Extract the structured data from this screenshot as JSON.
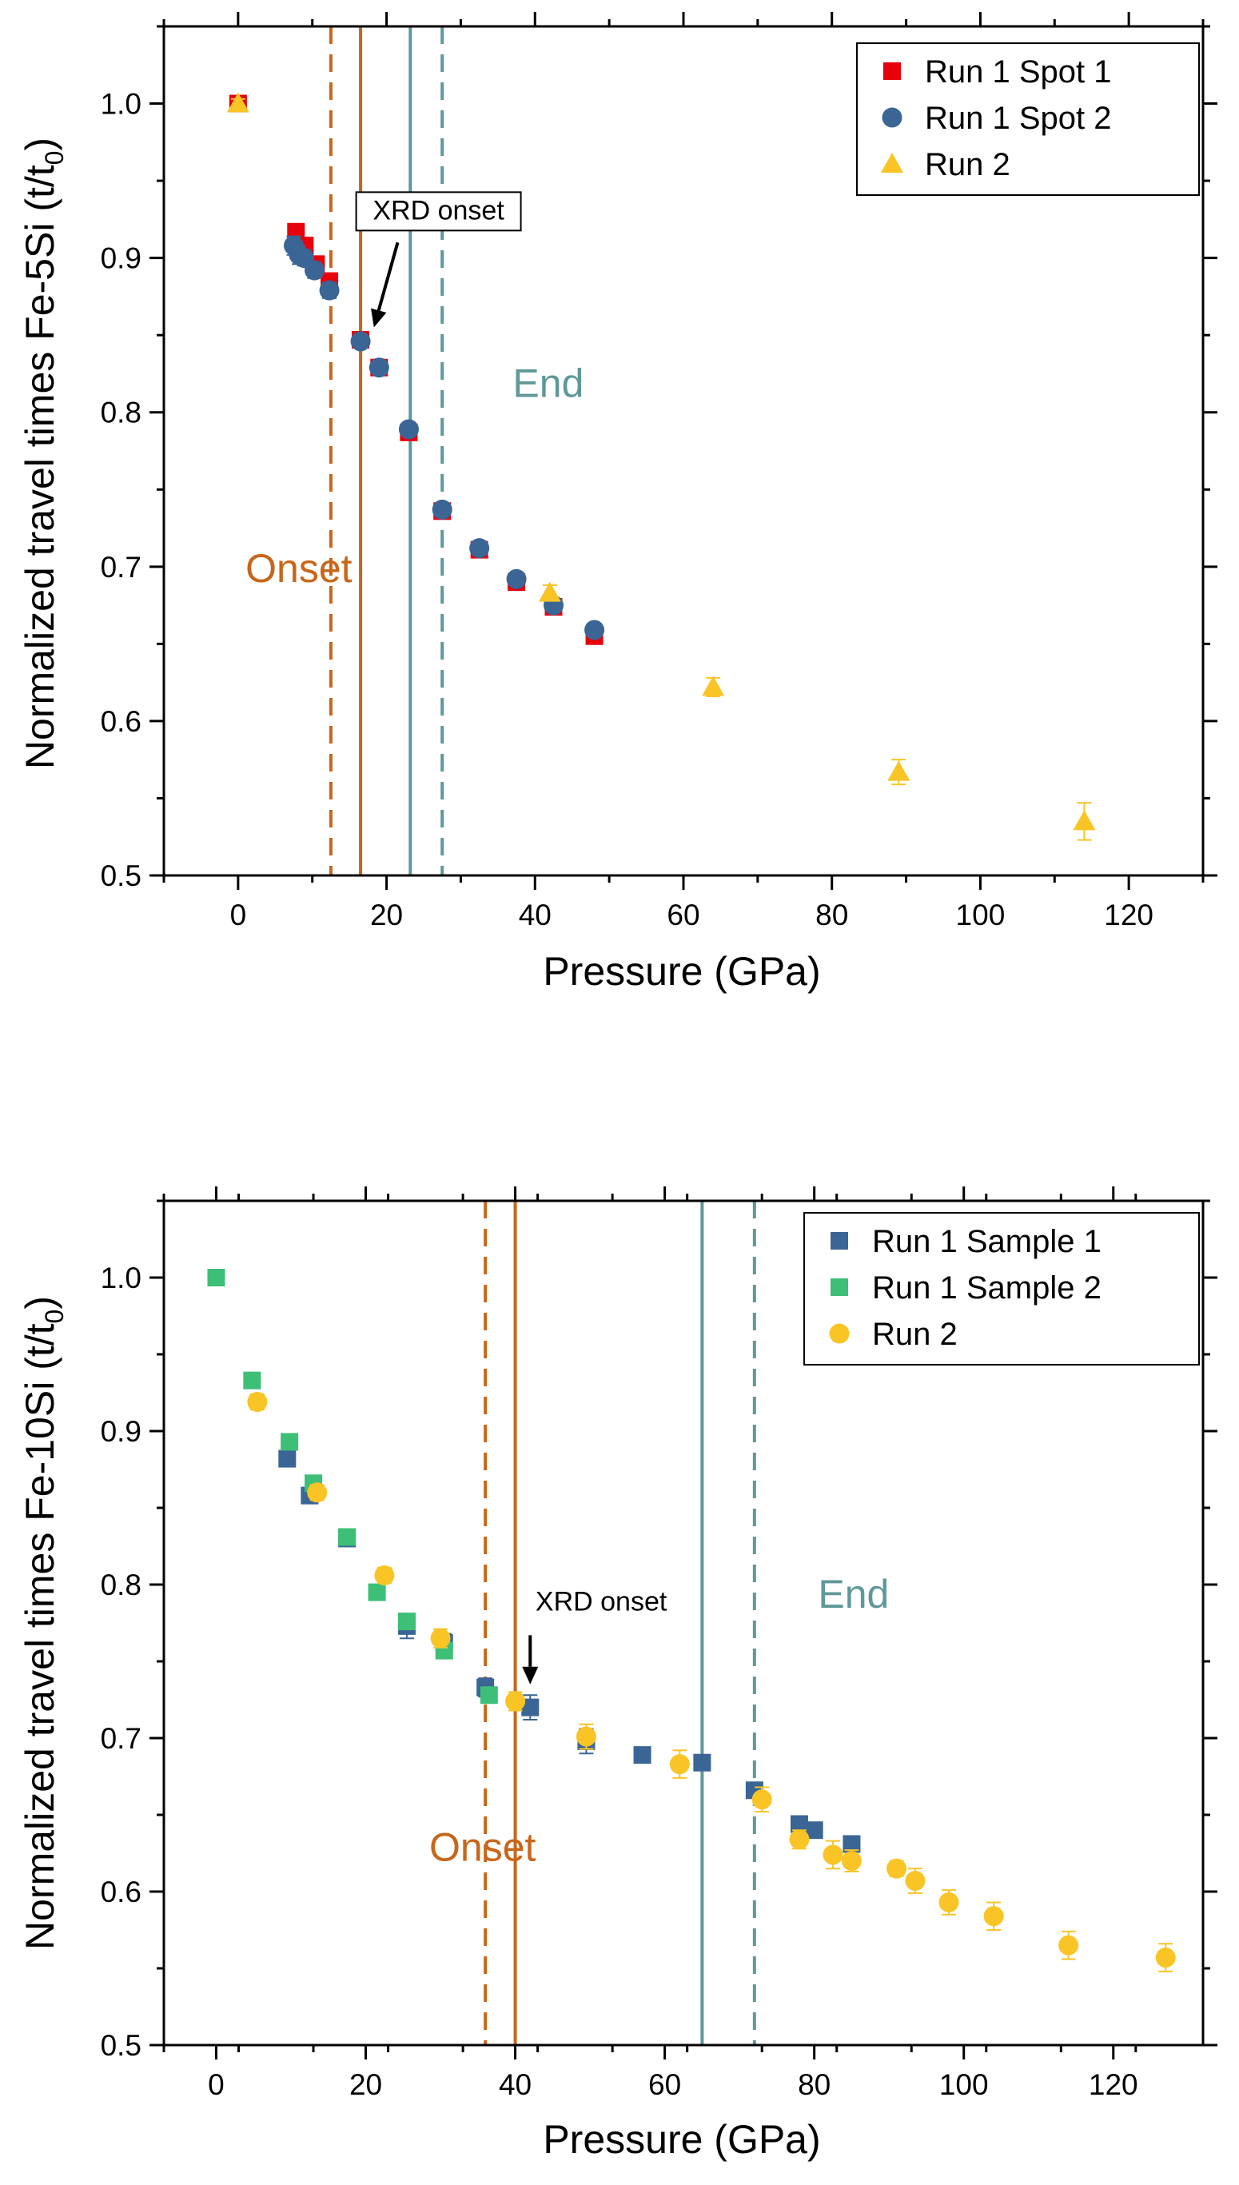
{
  "colors": {
    "red": "#e8000b",
    "steel_blue": "#3a6595",
    "yellow": "#f9c425",
    "green": "#3dbf77",
    "onset_orange": "#c8661a",
    "end_teal": "#5f9898",
    "axis": "#000000"
  },
  "chart_data": [
    {
      "type": "scatter",
      "xlabel": "Pressure (GPa)",
      "ylabel_main": "Normalized travel times Fe-5Si (t/t",
      "ylabel_sub": "0",
      "ylabel_close": ")",
      "xlim": [
        -10,
        130
      ],
      "ylim": [
        0.5,
        1.05
      ],
      "xticks": [
        0,
        20,
        40,
        60,
        80,
        100,
        120
      ],
      "xtick_labels": [
        "0",
        "20",
        "40",
        "60",
        "80",
        "100",
        "120"
      ],
      "yticks": [
        0.5,
        0.6,
        0.7,
        0.8,
        0.9,
        1.0
      ],
      "ytick_labels": [
        "0.5",
        "0.6",
        "0.7",
        "0.8",
        "0.9",
        "1.0"
      ],
      "legend_position": "top-right",
      "vlines": [
        {
          "x": 12.5,
          "style": "dashed",
          "color_key": "onset_orange"
        },
        {
          "x": 16.5,
          "style": "solid",
          "color_key": "onset_orange"
        },
        {
          "x": 23.2,
          "style": "solid",
          "color_key": "end_teal"
        },
        {
          "x": 27.5,
          "style": "dashed",
          "color_key": "end_teal"
        }
      ],
      "annotations": [
        {
          "text": "Onset",
          "x": 1,
          "y": 0.69,
          "color_key": "onset_orange"
        },
        {
          "text": "End",
          "x": 37,
          "y": 0.81,
          "color_key": "end_teal"
        }
      ],
      "callout": {
        "text": "XRD onset",
        "x": 27,
        "y": 0.925,
        "arrow_from": [
          21.5,
          0.91
        ],
        "arrow_to": [
          18.3,
          0.855
        ]
      },
      "series": [
        {
          "name": "Run 1 Spot 1",
          "marker": "square",
          "color_key": "red",
          "x": [
            0,
            7.8,
            9,
            10.5,
            12.3,
            16.5,
            19,
            23,
            27.5,
            32.5,
            37.5,
            42.5,
            48
          ],
          "y": [
            1.0,
            0.917,
            0.908,
            0.896,
            0.885,
            0.847,
            0.829,
            0.787,
            0.736,
            0.711,
            0.69,
            0.674,
            0.655
          ],
          "err": [
            0,
            0,
            0,
            0,
            0,
            0,
            0,
            0,
            0,
            0,
            0,
            0,
            0
          ]
        },
        {
          "name": "Run 1 Spot 2",
          "marker": "circle",
          "color_key": "steel_blue",
          "x": [
            7.5,
            8.2,
            8.9,
            10.3,
            12.3,
            16.5,
            19,
            23,
            27.5,
            32.5,
            37.5,
            42.5,
            48
          ],
          "y": [
            0.908,
            0.902,
            0.9,
            0.892,
            0.879,
            0.846,
            0.829,
            0.789,
            0.737,
            0.712,
            0.692,
            0.675,
            0.659
          ],
          "err": [
            0.006,
            0.006,
            0.005,
            0.005,
            0.005,
            0.004,
            0.004,
            0.004,
            0.003,
            0.003,
            0.003,
            0.003,
            0.003
          ]
        },
        {
          "name": "Run 2",
          "marker": "triangle",
          "color_key": "yellow",
          "x": [
            0,
            42,
            64,
            89,
            114
          ],
          "y": [
            1.0,
            0.683,
            0.622,
            0.567,
            0.535
          ],
          "err": [
            0.003,
            0.005,
            0.006,
            0.008,
            0.012
          ]
        }
      ]
    },
    {
      "type": "scatter",
      "xlabel": "Pressure (GPa)",
      "ylabel_main": "Normalized travel times Fe-10Si (t/t",
      "ylabel_sub": "0",
      "ylabel_close": ")",
      "xlim": [
        -7,
        132
      ],
      "ylim": [
        0.5,
        1.05
      ],
      "xticks": [
        0,
        20,
        40,
        60,
        80,
        100,
        120
      ],
      "xtick_labels": [
        "0",
        "20",
        "40",
        "60",
        "80",
        "100",
        "120"
      ],
      "yticks": [
        0.5,
        0.6,
        0.7,
        0.8,
        0.9,
        1.0
      ],
      "ytick_labels": [
        "0.5",
        "0.6",
        "0.7",
        "0.8",
        "0.9",
        "1.0"
      ],
      "legend_position": "top-right",
      "vlines": [
        {
          "x": 36,
          "style": "dashed",
          "color_key": "onset_orange"
        },
        {
          "x": 40,
          "style": "solid",
          "color_key": "onset_orange"
        },
        {
          "x": 65,
          "style": "solid",
          "color_key": "end_teal"
        },
        {
          "x": 72,
          "style": "dashed",
          "color_key": "end_teal"
        }
      ],
      "annotations": [
        {
          "text": "Onset",
          "x": 28.5,
          "y": 0.62,
          "color_key": "onset_orange"
        },
        {
          "text": "End",
          "x": 80.5,
          "y": 0.785,
          "color_key": "end_teal"
        }
      ],
      "callout": {
        "text": "XRD onset",
        "x": 51.5,
        "y": 0.783,
        "arrow_from": [
          42,
          0.767
        ],
        "arrow_to": [
          42,
          0.735
        ]
      },
      "series": [
        {
          "name": "Run 1 Sample 1",
          "marker": "square",
          "color_key": "steel_blue",
          "x": [
            9.5,
            12.5,
            17.5,
            25.5,
            30.5,
            36,
            42,
            49.5,
            57,
            65,
            72,
            78,
            80,
            85
          ],
          "y": [
            0.882,
            0.858,
            0.83,
            0.773,
            0.762,
            0.733,
            0.72,
            0.698,
            0.689,
            0.684,
            0.666,
            0.644,
            0.64,
            0.631
          ],
          "err": [
            0.004,
            0.004,
            0.004,
            0.008,
            0.006,
            0.006,
            0.008,
            0.008,
            0.004,
            0.004,
            0.004,
            0.004,
            0.004,
            0.004
          ]
        },
        {
          "name": "Run 1 Sample 2",
          "marker": "square",
          "color_key": "green",
          "x": [
            0,
            4.8,
            9.8,
            13,
            17.5,
            21.5,
            25.5,
            30.5,
            36.5
          ],
          "y": [
            1.0,
            0.933,
            0.893,
            0.866,
            0.831,
            0.795,
            0.776,
            0.757,
            0.728
          ],
          "err": [
            0.003,
            0.003,
            0.003,
            0.003,
            0.003,
            0.003,
            0.003,
            0.003,
            0.003
          ]
        },
        {
          "name": "Run 2",
          "marker": "circle",
          "color_key": "yellow",
          "x": [
            5.5,
            13.5,
            22.5,
            30,
            40,
            49.5,
            62,
            73,
            78,
            82.5,
            85,
            91,
            93.5,
            98,
            104,
            114,
            127
          ],
          "y": [
            0.919,
            0.86,
            0.806,
            0.765,
            0.724,
            0.701,
            0.683,
            0.66,
            0.634,
            0.624,
            0.62,
            0.615,
            0.607,
            0.593,
            0.584,
            0.565,
            0.557
          ],
          "err": [
            0.005,
            0.005,
            0.005,
            0.006,
            0.006,
            0.008,
            0.009,
            0.008,
            0.006,
            0.009,
            0.007,
            0.005,
            0.008,
            0.008,
            0.009,
            0.009,
            0.009
          ]
        }
      ]
    }
  ]
}
